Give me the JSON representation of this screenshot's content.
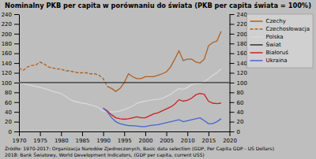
{
  "chart_data": {
    "type": "line",
    "title": "Nominalny PKB per capita w porównaniu do świata (PKB per capita świata = 100%)",
    "annotations": [
      "Źródło: 1970-2017: Organizacja Narodów Zjednoczonych, Basic data selection (GDP, Per Capita GDP - US Dollars)",
      "2018: Bank Światowy, World Development Indicators, (GDP per capita, current USS)"
    ],
    "xlim": [
      1970,
      2020
    ],
    "xticks": [
      1970,
      1975,
      1980,
      1985,
      1990,
      1995,
      2000,
      2005,
      2010,
      2015,
      2020
    ],
    "ylim": [
      0,
      240
    ],
    "yticks": [
      0,
      20,
      40,
      60,
      80,
      100,
      120,
      140,
      160,
      180,
      200,
      220,
      240
    ],
    "y2lim": [
      0,
      240
    ],
    "y2ticks": [
      0,
      20,
      40,
      60,
      80,
      100,
      120,
      140,
      160,
      180,
      200,
      220,
      240
    ],
    "grid": false,
    "legend": "right",
    "series": [
      {
        "name": "Czechy",
        "color": "#b06020",
        "line_style": "solid",
        "x": [
          1991,
          1992,
          1993,
          1994,
          1995,
          1996,
          1997,
          1998,
          1999,
          2000,
          2001,
          2002,
          2003,
          2004,
          2005,
          2006,
          2007,
          2008,
          2009,
          2010,
          2011,
          2012,
          2013,
          2014,
          2015,
          2016,
          2017,
          2018
        ],
        "values": [
          92,
          88,
          82,
          88,
          100,
          118,
          112,
          108,
          108,
          112,
          112,
          112,
          115,
          118,
          122,
          132,
          148,
          165,
          145,
          148,
          148,
          142,
          140,
          148,
          175,
          182,
          185,
          205
        ]
      },
      {
        "name": "Czechosłowacja",
        "color": "#b06020",
        "line_style": "dashed",
        "x": [
          1970,
          1971,
          1972,
          1973,
          1974,
          1975,
          1976,
          1977,
          1978,
          1979,
          1980,
          1981,
          1982,
          1983,
          1984,
          1985,
          1986,
          1987,
          1988,
          1989,
          1990,
          1991
        ],
        "values": [
          130,
          125,
          132,
          135,
          136,
          142,
          138,
          132,
          130,
          128,
          128,
          124,
          124,
          122,
          120,
          120,
          120,
          118,
          118,
          115,
          108,
          92
        ]
      },
      {
        "name": "Polska",
        "color": "#d8d8d8",
        "line_style": "solid",
        "x": [
          1970,
          1971,
          1972,
          1973,
          1974,
          1975,
          1976,
          1977,
          1978,
          1979,
          1980,
          1981,
          1982,
          1983,
          1984,
          1985,
          1986,
          1987,
          1988,
          1989,
          1990,
          1991,
          1992,
          1993,
          1994,
          1995,
          1996,
          1997,
          1998,
          1999,
          2000,
          2001,
          2002,
          2003,
          2004,
          2005,
          2006,
          2007,
          2008,
          2009,
          2010,
          2011,
          2012,
          2013,
          2014,
          2015,
          2016,
          2017,
          2018
        ],
        "values": [
          100,
          98,
          96,
          94,
          92,
          90,
          88,
          85,
          82,
          80,
          78,
          72,
          66,
          62,
          60,
          58,
          57,
          54,
          52,
          48,
          42,
          40,
          40,
          40,
          42,
          45,
          48,
          52,
          58,
          60,
          62,
          64,
          65,
          66,
          68,
          72,
          76,
          82,
          88,
          86,
          90,
          96,
          98,
          98,
          102,
          108,
          115,
          120,
          128
        ]
      },
      {
        "name": "Świat",
        "color": "#303030",
        "line_style": "solid",
        "x": [
          1970,
          2020
        ],
        "values": [
          100,
          100
        ]
      },
      {
        "name": "Białoruś",
        "color": "#cc2222",
        "line_style": "solid",
        "x": [
          1990,
          1991,
          1992,
          1993,
          1994,
          1995,
          1996,
          1997,
          1998,
          1999,
          2000,
          2001,
          2002,
          2003,
          2004,
          2005,
          2006,
          2007,
          2008,
          2009,
          2010,
          2011,
          2012,
          2013,
          2014,
          2015,
          2016,
          2017,
          2018
        ],
        "values": [
          48,
          42,
          34,
          28,
          26,
          25,
          26,
          28,
          30,
          28,
          28,
          32,
          36,
          38,
          42,
          46,
          50,
          56,
          65,
          62,
          64,
          68,
          75,
          78,
          76,
          62,
          58,
          57,
          58
        ]
      },
      {
        "name": "Ukraina",
        "color": "#4466cc",
        "line_style": "solid",
        "x": [
          1990,
          1991,
          1992,
          1993,
          1994,
          1995,
          1996,
          1997,
          1998,
          1999,
          2000,
          2001,
          2002,
          2003,
          2004,
          2005,
          2006,
          2007,
          2008,
          2009,
          2010,
          2011,
          2012,
          2013,
          2014,
          2015,
          2016,
          2017,
          2018
        ],
        "values": [
          48,
          40,
          28,
          20,
          16,
          14,
          12,
          12,
          11,
          10,
          10,
          12,
          13,
          14,
          16,
          18,
          20,
          22,
          24,
          20,
          22,
          24,
          26,
          28,
          22,
          16,
          16,
          20,
          26
        ]
      }
    ]
  }
}
